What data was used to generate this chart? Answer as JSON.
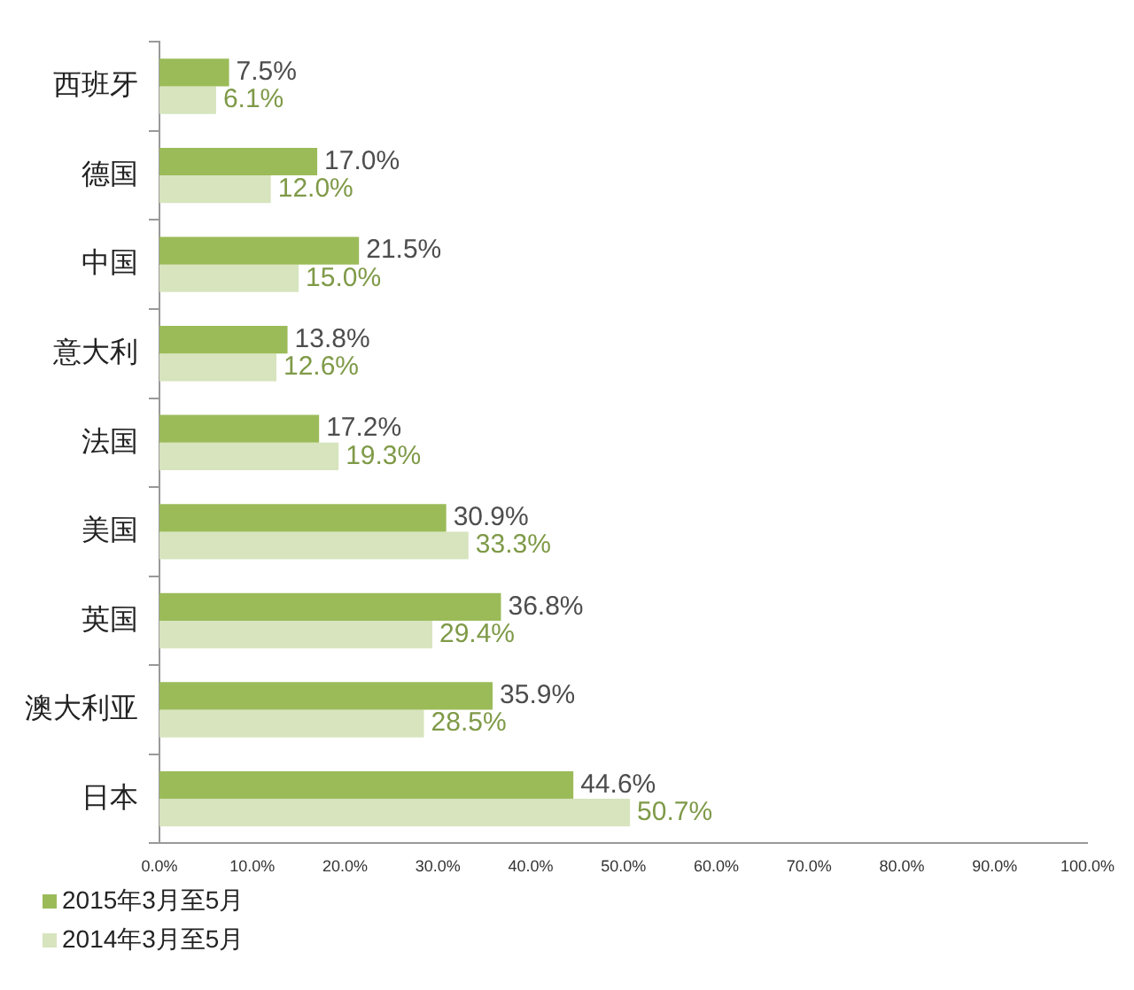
{
  "chart_data": {
    "type": "bar",
    "orientation": "horizontal",
    "categories": [
      "西班牙",
      "德国",
      "中国",
      "意大利",
      "法国",
      "美国",
      "英国",
      "澳大利亚",
      "日本"
    ],
    "series": [
      {
        "name": "2015年3月至5月",
        "color": "#9bbb59",
        "values": [
          7.5,
          17.0,
          21.5,
          13.8,
          17.2,
          30.9,
          36.8,
          35.9,
          44.6
        ],
        "value_labels": [
          "7.5%",
          "17.0%",
          "21.5%",
          "13.8%",
          "17.2%",
          "30.9%",
          "36.8%",
          "35.9%",
          "44.6%"
        ]
      },
      {
        "name": "2014年3月至5月",
        "color": "#d7e4bd",
        "values": [
          6.1,
          12.0,
          15.0,
          12.6,
          19.3,
          33.3,
          29.4,
          28.5,
          50.7
        ],
        "value_labels": [
          "6.1%",
          "12.0%",
          "15.0%",
          "12.6%",
          "19.3%",
          "33.3%",
          "29.4%",
          "28.5%",
          "50.7%"
        ]
      }
    ],
    "xlim": [
      0,
      100
    ],
    "xticks": [
      {
        "value": 0,
        "label": "0.0%"
      },
      {
        "value": 10,
        "label": "10.0%"
      },
      {
        "value": 20,
        "label": "20.0%"
      },
      {
        "value": 30,
        "label": "30.0%"
      },
      {
        "value": 40,
        "label": "40.0%"
      },
      {
        "value": 50,
        "label": "50.0%"
      },
      {
        "value": 60,
        "label": "60.0%"
      },
      {
        "value": 70,
        "label": "70.0%"
      },
      {
        "value": 80,
        "label": "80.0%"
      },
      {
        "value": 90,
        "label": "90.0%"
      },
      {
        "value": 100,
        "label": "100.0%"
      }
    ],
    "grid": false,
    "legend": "bottom left"
  }
}
